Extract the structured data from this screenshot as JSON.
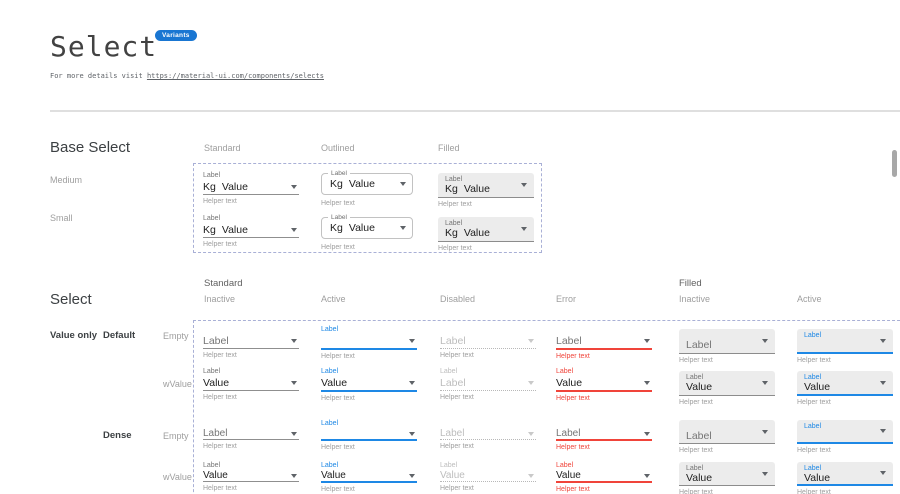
{
  "header": {
    "title": "Select",
    "badge": "Variants",
    "subtitle_prefix": "For more details visit ",
    "subtitle_link": "https://material-ui.com/components/selects"
  },
  "colors": {
    "accent": "#1e88e5",
    "error": "#f0443a",
    "badge_bg": "#1976d2",
    "dashed_border": "#a9b0d6",
    "filled_bg": "#ececec",
    "divider": "#dfdfdf",
    "text": "#212121",
    "label_muted": "#757575",
    "helper_gray": "#9e9e9e",
    "disabled": "#bdbdbd"
  },
  "icons": {
    "dropdown_arrow": "▾"
  },
  "base_select": {
    "heading": "Base Select",
    "columns": [
      "Standard",
      "Outlined",
      "Filled"
    ],
    "rows": [
      "Medium",
      "Small"
    ],
    "cells": [
      {
        "variant": "standard",
        "size": "medium",
        "label": "Label",
        "adornment": "Kg",
        "value": "Value",
        "helper": "Helper text"
      },
      {
        "variant": "outlined",
        "size": "medium",
        "label": "Label",
        "adornment": "Kg",
        "value": "Value",
        "helper": "Helper text"
      },
      {
        "variant": "filled",
        "size": "medium",
        "label": "Label",
        "adornment": "Kg",
        "value": "Value",
        "helper": "Helper text"
      },
      {
        "variant": "standard",
        "size": "small",
        "label": "Label",
        "adornment": "Kg",
        "value": "Value",
        "helper": "Helper text"
      },
      {
        "variant": "outlined",
        "size": "small",
        "label": "Label",
        "adornment": "Kg",
        "value": "Value",
        "helper": "Helper text"
      },
      {
        "variant": "filled",
        "size": "small",
        "label": "Label",
        "adornment": "Kg",
        "value": "Value",
        "helper": "Helper text"
      }
    ]
  },
  "select_matrix": {
    "heading": "Select",
    "groups": [
      {
        "label": "Standard",
        "states": [
          "Inactive",
          "Active",
          "Disabled",
          "Error"
        ]
      },
      {
        "label": "Filled",
        "states": [
          "Inactive",
          "Active"
        ]
      }
    ],
    "row_labels": {
      "value_only": "Value only",
      "size_default": "Default",
      "size_dense": "Dense",
      "empty": "Empty",
      "with_value": "wValue"
    },
    "cells": [
      {
        "row": 0,
        "col": 0,
        "variant": "standard",
        "state": "inactive",
        "dense": false,
        "label": "",
        "value": "Label",
        "helper": "Helper text"
      },
      {
        "row": 0,
        "col": 1,
        "variant": "standard",
        "state": "active",
        "dense": false,
        "label": "Label",
        "value": "",
        "helper": "Helper text"
      },
      {
        "row": 0,
        "col": 2,
        "variant": "standard",
        "state": "disabled",
        "dense": false,
        "label": "",
        "value": "Label",
        "helper": "Helper text"
      },
      {
        "row": 0,
        "col": 3,
        "variant": "standard",
        "state": "error",
        "dense": false,
        "label": "",
        "value": "Label",
        "helper": "Helper text"
      },
      {
        "row": 0,
        "col": 4,
        "variant": "filled",
        "state": "inactive",
        "dense": false,
        "label": "",
        "value": "Label",
        "helper": "Helper text"
      },
      {
        "row": 0,
        "col": 5,
        "variant": "filled",
        "state": "active",
        "dense": false,
        "label": "Label",
        "value": "",
        "helper": "Helper text"
      },
      {
        "row": 1,
        "col": 0,
        "variant": "standard",
        "state": "inactive",
        "dense": false,
        "label": "Label",
        "value": "Value",
        "helper": "Helper text"
      },
      {
        "row": 1,
        "col": 1,
        "variant": "standard",
        "state": "active",
        "dense": false,
        "label": "Label",
        "value": "Value",
        "helper": "Helper text"
      },
      {
        "row": 1,
        "col": 2,
        "variant": "standard",
        "state": "disabled",
        "dense": false,
        "label": "Label",
        "value": "Label",
        "helper": "Helper text"
      },
      {
        "row": 1,
        "col": 3,
        "variant": "standard",
        "state": "error",
        "dense": false,
        "label": "Label",
        "value": "Value",
        "helper": "Helper text"
      },
      {
        "row": 1,
        "col": 4,
        "variant": "filled",
        "state": "inactive",
        "dense": false,
        "label": "Label",
        "value": "Value",
        "helper": "Helper text"
      },
      {
        "row": 1,
        "col": 5,
        "variant": "filled",
        "state": "active",
        "dense": false,
        "label": "Label",
        "value": "Value",
        "helper": "Helper text"
      },
      {
        "row": 2,
        "col": 0,
        "variant": "standard",
        "state": "inactive",
        "dense": true,
        "label": "",
        "value": "Label",
        "helper": "Helper text"
      },
      {
        "row": 2,
        "col": 1,
        "variant": "standard",
        "state": "active",
        "dense": true,
        "label": "Label",
        "value": "",
        "helper": "Helper text"
      },
      {
        "row": 2,
        "col": 2,
        "variant": "standard",
        "state": "disabled",
        "dense": true,
        "label": "",
        "value": "Label",
        "helper": "Helper text"
      },
      {
        "row": 2,
        "col": 3,
        "variant": "standard",
        "state": "error",
        "dense": true,
        "label": "",
        "value": "Label",
        "helper": "Helper text"
      },
      {
        "row": 2,
        "col": 4,
        "variant": "filled",
        "state": "inactive",
        "dense": true,
        "label": "",
        "value": "Label",
        "helper": "Helper text"
      },
      {
        "row": 2,
        "col": 5,
        "variant": "filled",
        "state": "active",
        "dense": true,
        "label": "Label",
        "value": "",
        "helper": "Helper text"
      },
      {
        "row": 3,
        "col": 0,
        "variant": "standard",
        "state": "inactive",
        "dense": true,
        "label": "Label",
        "value": "Value",
        "helper": "Helper text"
      },
      {
        "row": 3,
        "col": 1,
        "variant": "standard",
        "state": "active",
        "dense": true,
        "label": "Label",
        "value": "Value",
        "helper": "Helper text"
      },
      {
        "row": 3,
        "col": 2,
        "variant": "standard",
        "state": "disabled",
        "dense": true,
        "label": "Label",
        "value": "Value",
        "helper": "Helper text"
      },
      {
        "row": 3,
        "col": 3,
        "variant": "standard",
        "state": "error",
        "dense": true,
        "label": "Label",
        "value": "Value",
        "helper": "Helper text"
      },
      {
        "row": 3,
        "col": 4,
        "variant": "filled",
        "state": "inactive",
        "dense": true,
        "label": "Label",
        "value": "Value",
        "helper": "Helper text"
      },
      {
        "row": 3,
        "col": 5,
        "variant": "filled",
        "state": "active",
        "dense": true,
        "label": "Label",
        "value": "Value",
        "helper": "Helper text"
      }
    ]
  }
}
